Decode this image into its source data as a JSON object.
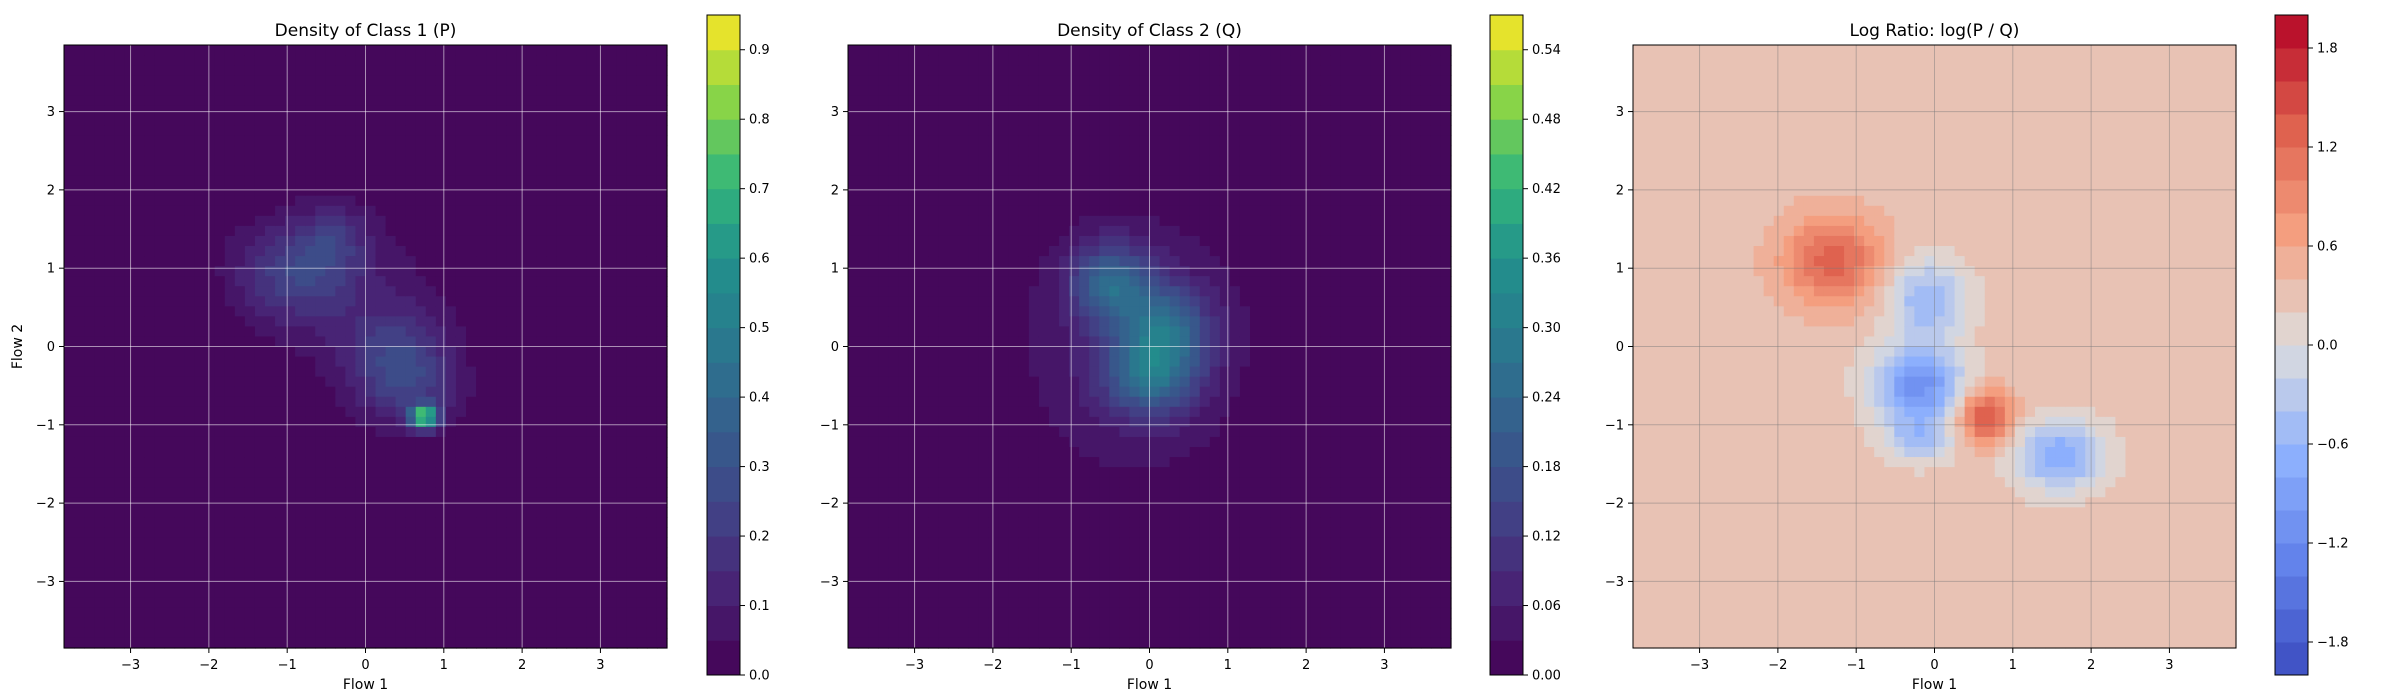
{
  "chart_data": [
    {
      "type": "heatmap",
      "title": "Density of Class 1 (P)",
      "xlabel": "Flow 1",
      "ylabel": "Flow 2",
      "xlim": [
        -3.85,
        3.85
      ],
      "ylim": [
        -3.85,
        3.85
      ],
      "xticks": [
        "−3",
        "−2",
        "−1",
        "0",
        "1",
        "2",
        "3"
      ],
      "yticks": [
        "3",
        "2",
        "1",
        "0",
        "−1",
        "−2",
        "−3"
      ],
      "grid": true,
      "colormap": "viridis",
      "colorbar": {
        "min": 0.0,
        "max": 0.95,
        "levels": 19,
        "ticks": [
          "0.0",
          "0.1",
          "0.2",
          "0.3",
          "0.4",
          "0.5",
          "0.6",
          "0.7",
          "0.8",
          "0.9"
        ],
        "tick_values": [
          0.0,
          0.1,
          0.2,
          0.3,
          0.4,
          0.5,
          0.6,
          0.7,
          0.8,
          0.9
        ]
      },
      "components": [
        {
          "x": -0.9,
          "y": 0.95,
          "sx": 0.55,
          "sy": 0.45,
          "peak": 0.22
        },
        {
          "x": -0.4,
          "y": 1.4,
          "sx": 0.3,
          "sy": 0.3,
          "peak": 0.12
        },
        {
          "x": 0.4,
          "y": -0.1,
          "sx": 0.45,
          "sy": 0.4,
          "peak": 0.18
        },
        {
          "x": 0.75,
          "y": -0.9,
          "sx": 0.12,
          "sy": 0.1,
          "peak": 0.75
        },
        {
          "x": 0.6,
          "y": -0.6,
          "sx": 0.45,
          "sy": 0.35,
          "peak": 0.14
        },
        {
          "x": 0.05,
          "y": 0.5,
          "sx": 0.8,
          "sy": 0.8,
          "peak": 0.07
        }
      ]
    },
    {
      "type": "heatmap",
      "title": "Density of Class 2 (Q)",
      "xlabel": "Flow 1",
      "ylabel": "",
      "xlim": [
        -3.85,
        3.85
      ],
      "ylim": [
        -3.85,
        3.85
      ],
      "xticks": [
        "−3",
        "−2",
        "−1",
        "0",
        "1",
        "2",
        "3"
      ],
      "yticks": [
        "3",
        "2",
        "1",
        "0",
        "−1",
        "−2",
        "−3"
      ],
      "grid": true,
      "colormap": "viridis",
      "colorbar": {
        "min": 0.0,
        "max": 0.57,
        "levels": 19,
        "ticks": [
          "0.00",
          "0.06",
          "0.12",
          "0.18",
          "0.24",
          "0.30",
          "0.36",
          "0.42",
          "0.48",
          "0.54"
        ],
        "tick_values": [
          0.0,
          0.06,
          0.12,
          0.18,
          0.24,
          0.3,
          0.36,
          0.42,
          0.48,
          0.54
        ]
      },
      "components": [
        {
          "x": -0.5,
          "y": 0.8,
          "sx": 0.35,
          "sy": 0.35,
          "peak": 0.2
        },
        {
          "x": 0.2,
          "y": 0.2,
          "sx": 0.4,
          "sy": 0.4,
          "peak": 0.2
        },
        {
          "x": 0.0,
          "y": -0.4,
          "sx": 0.4,
          "sy": 0.35,
          "peak": 0.18
        },
        {
          "x": -0.2,
          "y": 0.0,
          "sx": 1.0,
          "sy": 1.2,
          "peak": 0.07
        }
      ]
    },
    {
      "type": "heatmap",
      "title": "Log Ratio: log(P / Q)",
      "xlabel": "Flow 1",
      "ylabel": "",
      "xlim": [
        -3.85,
        3.85
      ],
      "ylim": [
        -3.85,
        3.85
      ],
      "xticks": [
        "−3",
        "−2",
        "−1",
        "0",
        "1",
        "2",
        "3"
      ],
      "yticks": [
        "3",
        "2",
        "1",
        "0",
        "−1",
        "−2",
        "−3"
      ],
      "grid": true,
      "colormap": "coolwarm",
      "colorbar": {
        "min": -2.0,
        "max": 2.0,
        "levels": 20,
        "ticks": [
          "−1.8",
          "−1.2",
          "−0.6",
          "0.0",
          "0.6",
          "1.2",
          "1.8"
        ],
        "tick_values": [
          -1.8,
          -1.2,
          -0.6,
          0.0,
          0.6,
          1.2,
          1.8
        ]
      },
      "base": 0.3,
      "components": [
        {
          "x": -1.3,
          "y": 1.1,
          "sx": 0.45,
          "sy": 0.4,
          "peak": 1.0
        },
        {
          "x": 0.65,
          "y": -0.9,
          "sx": 0.25,
          "sy": 0.25,
          "peak": 1.2
        },
        {
          "x": -0.2,
          "y": -0.5,
          "sx": 0.4,
          "sy": 0.35,
          "peak": -1.4
        },
        {
          "x": -0.1,
          "y": 0.6,
          "sx": 0.35,
          "sy": 0.35,
          "peak": -0.9
        },
        {
          "x": 1.6,
          "y": -1.4,
          "sx": 0.4,
          "sy": 0.3,
          "peak": -1.1
        },
        {
          "x": -0.2,
          "y": -1.2,
          "sx": 0.3,
          "sy": 0.2,
          "peak": -0.7
        }
      ]
    }
  ]
}
